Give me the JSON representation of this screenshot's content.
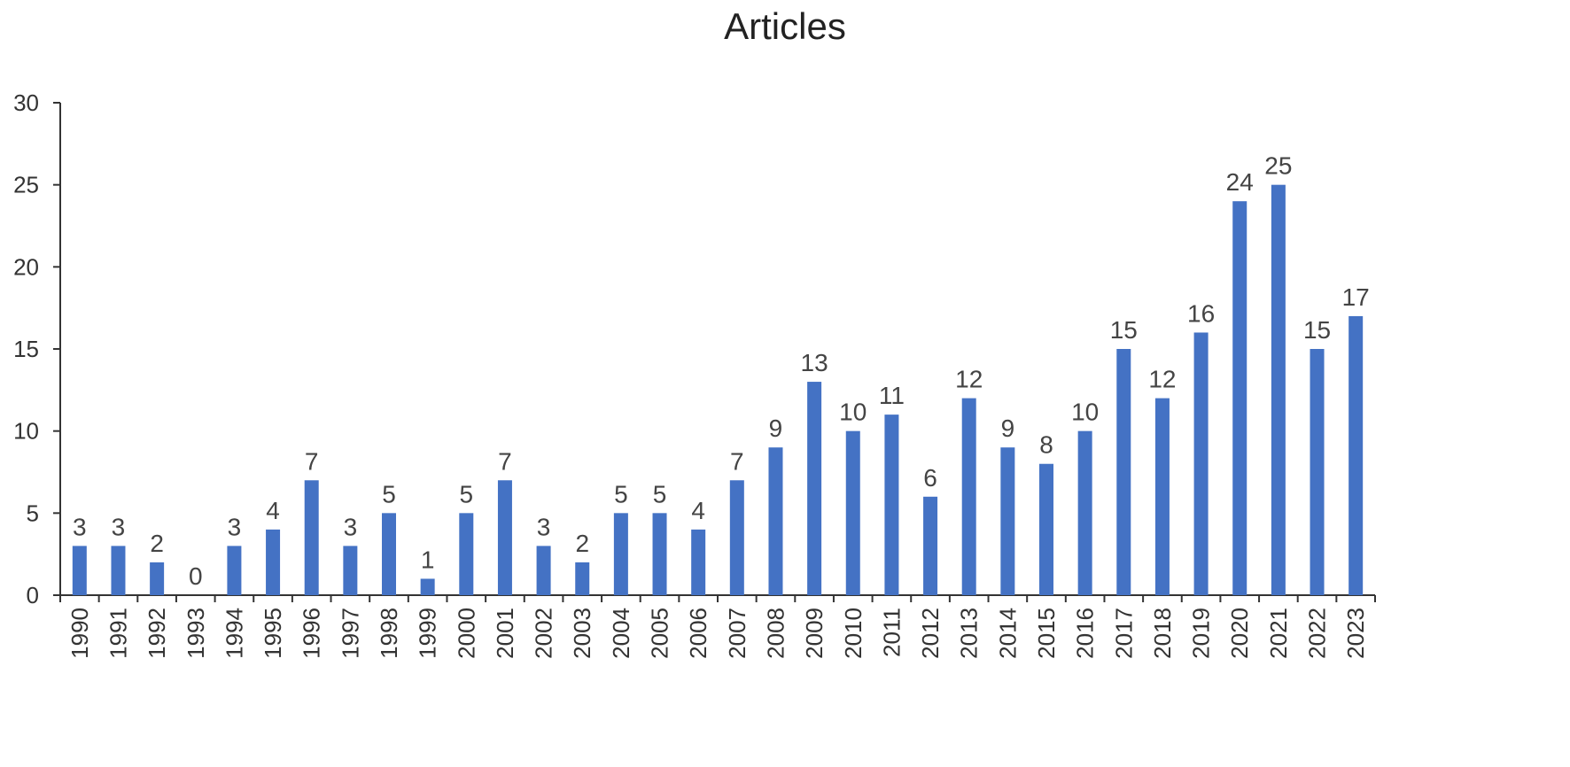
{
  "chart_data": {
    "type": "bar",
    "title": "Articles",
    "xlabel": "",
    "ylabel": "",
    "ylim": [
      0,
      30
    ],
    "yticks": [
      0,
      5,
      10,
      15,
      20,
      25,
      30
    ],
    "grid": false,
    "legend": "none",
    "bar_color": "#4472C4",
    "categories": [
      "1990",
      "1991",
      "1992",
      "1993",
      "1994",
      "1995",
      "1996",
      "1997",
      "1998",
      "1999",
      "2000",
      "2001",
      "2002",
      "2003",
      "2004",
      "2005",
      "2006",
      "2007",
      "2008",
      "2009",
      "2010",
      "2011",
      "2012",
      "2013",
      "2014",
      "2015",
      "2016",
      "2017",
      "2018",
      "2019",
      "2020",
      "2021",
      "2022",
      "2023"
    ],
    "values": [
      3,
      3,
      2,
      0,
      3,
      4,
      7,
      3,
      5,
      1,
      5,
      7,
      3,
      2,
      5,
      5,
      4,
      7,
      9,
      13,
      10,
      11,
      6,
      12,
      9,
      8,
      10,
      15,
      12,
      16,
      24,
      25,
      15,
      17
    ]
  }
}
